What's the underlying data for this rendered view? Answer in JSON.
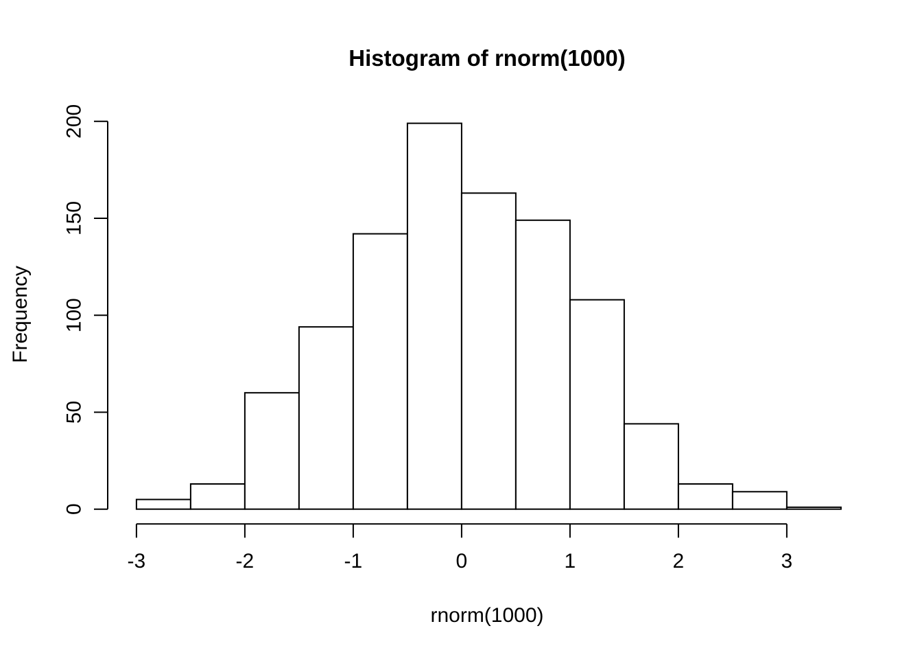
{
  "chart_data": {
    "type": "bar",
    "subtype": "histogram",
    "title": "Histogram of rnorm(1000)",
    "xlabel": "rnorm(1000)",
    "ylabel": "Frequency",
    "bin_edges": [
      -3,
      -2.5,
      -2,
      -1.5,
      -1,
      -0.5,
      0,
      0.5,
      1,
      1.5,
      2,
      2.5,
      3,
      3.5
    ],
    "counts": [
      5,
      13,
      60,
      94,
      142,
      199,
      163,
      149,
      108,
      44,
      13,
      9,
      1
    ],
    "x_ticks": [
      -3,
      -2,
      -1,
      0,
      1,
      2,
      3
    ],
    "y_ticks": [
      0,
      50,
      100,
      150,
      200
    ],
    "xlim": [
      -3,
      3.5
    ],
    "ylim": [
      0,
      200
    ],
    "grid": false,
    "legend": null,
    "bar_fill": "#ffffff",
    "bar_stroke": "#000000",
    "axis_color": "#000000",
    "text_color": "#000000",
    "background": "#ffffff"
  }
}
